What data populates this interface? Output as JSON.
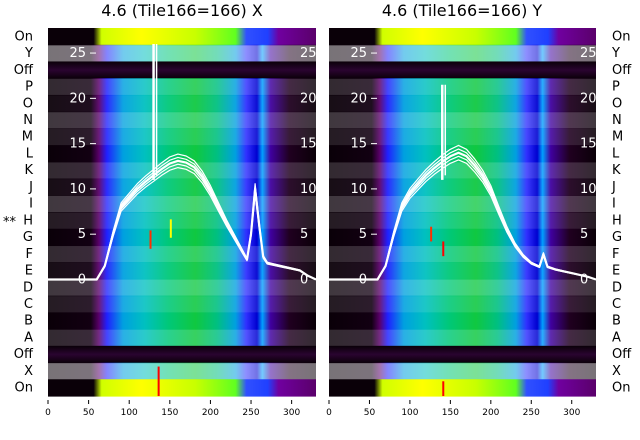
{
  "chart_data": {
    "type": "heatmap",
    "x_ticks": [
      "0",
      "50",
      "100",
      "150",
      "200",
      "250",
      "300"
    ],
    "xlim": [
      0,
      330
    ],
    "row_labels": [
      "On",
      "Y",
      "Off",
      "P",
      "O",
      "N",
      "M",
      "L",
      "K",
      "J",
      "I",
      "H",
      "G",
      "F",
      "E",
      "D",
      "C",
      "B",
      "A",
      "Off",
      "X",
      "On"
    ],
    "row_marker": {
      "row": "H",
      "text": "**"
    },
    "overlay_ylim": [
      -0.5,
      26
    ],
    "overlay_y_ticks": [
      "0",
      "5",
      "10",
      "15",
      "20",
      "25"
    ],
    "colormap": [
      "#0a0008",
      "#5a006a",
      "#2020ff",
      "#00c0e0",
      "#00d060",
      "#40ff00",
      "#ffff00",
      "#ff0000"
    ],
    "panels": [
      {
        "title": "4.6 (Tile166=166) X",
        "overlay_curve": {
          "x": [
            0,
            60,
            70,
            80,
            90,
            100,
            110,
            120,
            130,
            140,
            150,
            160,
            170,
            180,
            190,
            200,
            210,
            220,
            230,
            240,
            245,
            250,
            255,
            260,
            265,
            270,
            280,
            290,
            300,
            310,
            320,
            330
          ],
          "y": [
            0,
            0,
            1.5,
            5,
            8,
            9,
            10,
            10.8,
            11.5,
            12.2,
            12.8,
            13.1,
            12.9,
            12.4,
            11.3,
            9.8,
            8,
            6.2,
            4.6,
            3,
            2.2,
            5,
            10,
            6,
            2.5,
            1.8,
            1.6,
            1.4,
            1.2,
            1,
            0.4,
            0
          ]
        },
        "spike": {
          "x": 130,
          "y_max": 26
        }
      },
      {
        "title": "4.6 (Tile166=166) Y",
        "overlay_curve": {
          "x": [
            0,
            60,
            70,
            80,
            90,
            100,
            110,
            120,
            130,
            140,
            150,
            160,
            170,
            180,
            190,
            200,
            210,
            220,
            230,
            240,
            250,
            260,
            265,
            270,
            280,
            290,
            300,
            310,
            320,
            330
          ],
          "y": [
            0,
            0,
            1.5,
            5,
            8,
            9.5,
            10.5,
            11.5,
            12.3,
            13,
            13.6,
            14,
            13.6,
            12.6,
            11.4,
            9.8,
            7.6,
            5.5,
            3.8,
            2.6,
            1.8,
            1.4,
            2.8,
            1.4,
            1.1,
            0.9,
            0.7,
            0.5,
            0.3,
            0
          ]
        },
        "spike": {
          "x": 140,
          "y_max": 21.5
        }
      }
    ]
  }
}
